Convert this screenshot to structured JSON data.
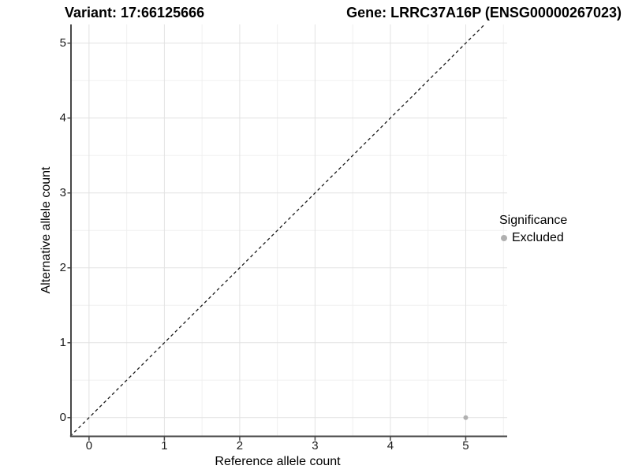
{
  "header": {
    "variant_title": "Variant: 17:66125666",
    "gene_title": "Gene: LRRC37A16P (ENSG00000267023)"
  },
  "axes": {
    "x": {
      "label": "Reference allele count",
      "ticks": [
        "0",
        "1",
        "2",
        "3",
        "4",
        "5"
      ]
    },
    "y": {
      "label": "Alternative allele count",
      "ticks": [
        "0",
        "1",
        "2",
        "3",
        "4",
        "5"
      ]
    }
  },
  "legend": {
    "title": "Significance",
    "items": [
      {
        "label": "Excluded",
        "color": "#b0b0b0"
      }
    ]
  },
  "colors": {
    "axis_line": "#474747",
    "tick_mark": "#474747",
    "grid_major": "#e2e2e2",
    "grid_minor": "#f0f0f0",
    "reference_line": "#1a1a1a",
    "panel_background": "#ffffff"
  },
  "chart_data": {
    "type": "scatter",
    "title": "Variant: 17:66125666 — Gene: LRRC37A16P (ENSG00000267023)",
    "xlabel": "Reference allele count",
    "ylabel": "Alternative allele count",
    "xlim": [
      -0.25,
      5.55
    ],
    "ylim": [
      -0.25,
      5.25
    ],
    "xticks": [
      0,
      1,
      2,
      3,
      4,
      5
    ],
    "yticks": [
      0,
      1,
      2,
      3,
      4,
      5
    ],
    "grid": "major+minor",
    "legend_position": "right",
    "reference_line": {
      "slope": 1,
      "intercept": 0,
      "style": "dashed"
    },
    "series": [
      {
        "name": "Excluded",
        "color": "#b0b0b0",
        "points": [
          {
            "x": 5,
            "y": 0
          }
        ]
      }
    ]
  }
}
